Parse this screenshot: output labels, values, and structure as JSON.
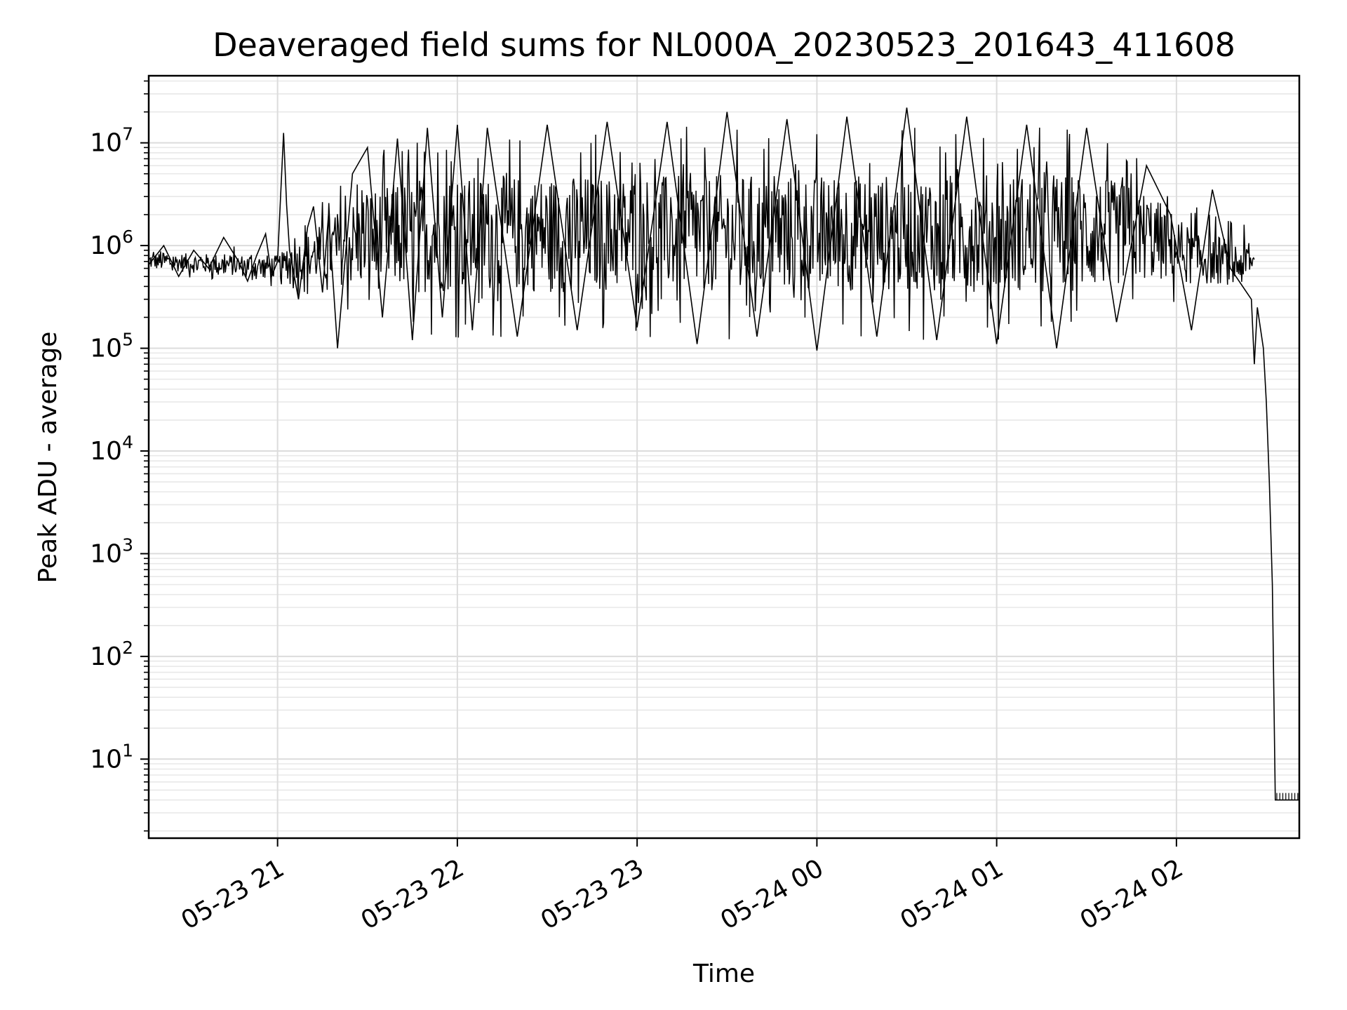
{
  "chart_data": {
    "type": "line",
    "title": "Deaveraged field sums for NL000A_20230523_201643_411608",
    "xlabel": "Time",
    "ylabel": "Peak ADU - average",
    "yscale": "log",
    "ylim": [
      1.7,
      45000000
    ],
    "xlim": [
      "2023-05-23 20:17",
      "2023-05-24 02:41"
    ],
    "grid": true,
    "x_ticks": [
      {
        "value": "2023-05-23 21:00",
        "label": "05-23 21"
      },
      {
        "value": "2023-05-23 22:00",
        "label": "05-23 22"
      },
      {
        "value": "2023-05-23 23:00",
        "label": "05-23 23"
      },
      {
        "value": "2023-05-24 00:00",
        "label": "05-24 00"
      },
      {
        "value": "2023-05-24 01:00",
        "label": "05-24 01"
      },
      {
        "value": "2023-05-24 02:00",
        "label": "05-24 02"
      }
    ],
    "y_ticks": [
      {
        "value": 10,
        "base": "10",
        "exp": "1"
      },
      {
        "value": 100,
        "base": "10",
        "exp": "2"
      },
      {
        "value": 1000,
        "base": "10",
        "exp": "3"
      },
      {
        "value": 10000,
        "base": "10",
        "exp": "4"
      },
      {
        "value": 100000,
        "base": "10",
        "exp": "5"
      },
      {
        "value": 1000000,
        "base": "10",
        "exp": "6"
      },
      {
        "value": 10000000,
        "base": "10",
        "exp": "7"
      }
    ],
    "series": [
      {
        "color": "#000000",
        "points": [
          [
            "2023-05-23 20:17",
            650000
          ],
          [
            "2023-05-23 20:22",
            1000000
          ],
          [
            "2023-05-23 20:27",
            500000
          ],
          [
            "2023-05-23 20:32",
            900000
          ],
          [
            "2023-05-23 20:37",
            600000
          ],
          [
            "2023-05-23 20:42",
            1200000
          ],
          [
            "2023-05-23 20:47",
            700000
          ],
          [
            "2023-05-23 20:50",
            450000
          ],
          [
            "2023-05-23 20:53",
            800000
          ],
          [
            "2023-05-23 20:56",
            1300000
          ],
          [
            "2023-05-23 20:58",
            500000
          ],
          [
            "2023-05-23 21:00",
            700000
          ],
          [
            "2023-05-23 21:02",
            12500000
          ],
          [
            "2023-05-23 21:03",
            2500000
          ],
          [
            "2023-05-23 21:04",
            900000
          ],
          [
            "2023-05-23 21:07",
            300000
          ],
          [
            "2023-05-23 21:10",
            1500000
          ],
          [
            "2023-05-23 21:12",
            2400000
          ],
          [
            "2023-05-23 21:15",
            350000
          ],
          [
            "2023-05-23 21:17",
            2000000
          ],
          [
            "2023-05-23 21:20",
            100000
          ],
          [
            "2023-05-23 21:25",
            5000000
          ],
          [
            "2023-05-23 21:30",
            9000000
          ],
          [
            "2023-05-23 21:35",
            200000
          ],
          [
            "2023-05-23 21:40",
            11000000
          ],
          [
            "2023-05-23 21:45",
            120000
          ],
          [
            "2023-05-23 21:50",
            14000000
          ],
          [
            "2023-05-23 21:55",
            200000
          ],
          [
            "2023-05-23 22:00",
            15000000
          ],
          [
            "2023-05-23 22:05",
            150000
          ],
          [
            "2023-05-23 22:10",
            14000000
          ],
          [
            "2023-05-23 22:20",
            130000
          ],
          [
            "2023-05-23 22:30",
            15000000
          ],
          [
            "2023-05-23 22:40",
            150000
          ],
          [
            "2023-05-23 22:50",
            16000000
          ],
          [
            "2023-05-23 23:00",
            160000
          ],
          [
            "2023-05-23 23:10",
            16000000
          ],
          [
            "2023-05-23 23:20",
            110000
          ],
          [
            "2023-05-23 23:30",
            20000000
          ],
          [
            "2023-05-23 23:40",
            130000
          ],
          [
            "2023-05-23 23:50",
            17000000
          ],
          [
            "2023-05-24 00:00",
            95000
          ],
          [
            "2023-05-24 00:10",
            18000000
          ],
          [
            "2023-05-24 00:20",
            130000
          ],
          [
            "2023-05-24 00:30",
            22000000
          ],
          [
            "2023-05-24 00:40",
            120000
          ],
          [
            "2023-05-24 00:50",
            18000000
          ],
          [
            "2023-05-24 01:00",
            110000
          ],
          [
            "2023-05-24 01:10",
            15000000
          ],
          [
            "2023-05-24 01:20",
            100000
          ],
          [
            "2023-05-24 01:30",
            14000000
          ],
          [
            "2023-05-24 01:40",
            180000
          ],
          [
            "2023-05-24 01:50",
            6000000
          ],
          [
            "2023-05-24 01:58",
            2000000
          ],
          [
            "2023-05-24 02:05",
            150000
          ],
          [
            "2023-05-24 02:12",
            3500000
          ],
          [
            "2023-05-24 02:18",
            600000
          ],
          [
            "2023-05-24 02:25",
            300000
          ],
          [
            "2023-05-24 02:26",
            70000
          ],
          [
            "2023-05-24 02:27",
            250000
          ],
          [
            "2023-05-24 02:29",
            100000
          ],
          [
            "2023-05-24 02:30",
            30000
          ],
          [
            "2023-05-24 02:31",
            5000
          ],
          [
            "2023-05-24 02:32",
            500
          ],
          [
            "2023-05-24 02:33",
            4
          ],
          [
            "2023-05-24 02:41",
            4
          ]
        ]
      }
    ]
  }
}
